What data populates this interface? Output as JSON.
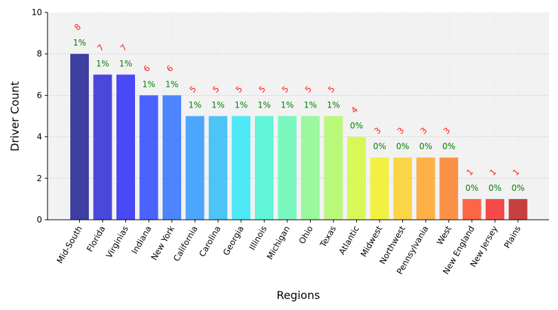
{
  "chart_data": {
    "type": "bar",
    "xlabel": "Regions",
    "ylabel": "Driver Count",
    "ylim": [
      0,
      10
    ],
    "yticks": [
      0,
      2,
      4,
      6,
      8,
      10
    ],
    "grid": true,
    "categories": [
      "Mid-South",
      "Florida",
      "Virginias",
      "Indiana",
      "New York",
      "California",
      "Carolina",
      "Georgia",
      "Illinois",
      "Michigan",
      "Ohio",
      "Texas",
      "Atlantic",
      "Midwest",
      "Northwest",
      "Pennsylvania",
      "West",
      "New England",
      "New Jersey",
      "Plains"
    ],
    "values": [
      8,
      7,
      7,
      6,
      6,
      5,
      5,
      5,
      5,
      5,
      5,
      5,
      4,
      3,
      3,
      3,
      3,
      1,
      1,
      1
    ],
    "count_labels": [
      "8",
      "7",
      "7",
      "6",
      "6",
      "5",
      "5",
      "5",
      "5",
      "5",
      "5",
      "5",
      "4",
      "3",
      "3",
      "3",
      "3",
      "1",
      "1",
      "1"
    ],
    "percent_labels": [
      "1%",
      "1%",
      "1%",
      "1%",
      "1%",
      "1%",
      "1%",
      "1%",
      "1%",
      "1%",
      "1%",
      "1%",
      "0%",
      "0%",
      "0%",
      "0%",
      "0%",
      "0%",
      "0%",
      "0%"
    ],
    "colors": [
      "#30309a",
      "#3a3ad8",
      "#3b3bf5",
      "#3d56ff",
      "#3f7cff",
      "#3fa0ff",
      "#3fc0f6",
      "#3fe8f6",
      "#55f5d8",
      "#70f8bb",
      "#92f898",
      "#b5f870",
      "#d5f84a",
      "#f2f032",
      "#fcd238",
      "#fdaa38",
      "#fd8a3a",
      "#fd5a36",
      "#f53c38",
      "#c33030"
    ],
    "count_label_color": "#ff2020",
    "percent_label_color": "#008000",
    "plot_background": "#f2f2f2"
  }
}
